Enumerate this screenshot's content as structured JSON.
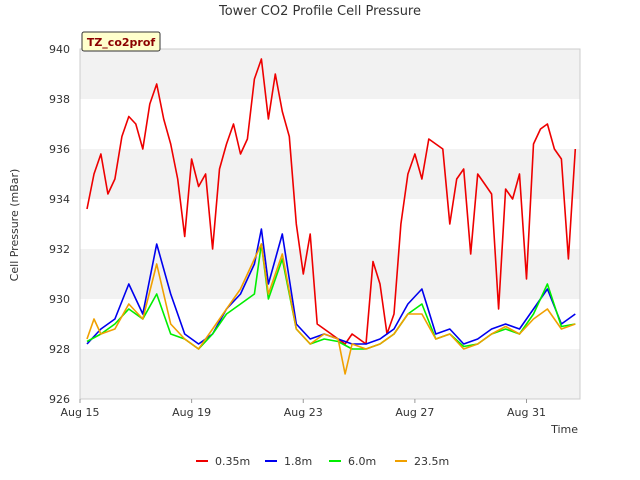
{
  "chart_data": {
    "type": "line",
    "title": "Tower CO2 Profile Cell Pressure",
    "xlabel": "Time",
    "ylabel": "Cell Pressure (mBar)",
    "site_tag": "TZ_co2prof",
    "xlim": [
      "2023-08-15",
      "2023-09-01 22:00"
    ],
    "ylim": [
      926,
      940
    ],
    "xticks": [
      {
        "label": "Aug 15",
        "date": "2023-08-15"
      },
      {
        "label": "Aug 19",
        "date": "2023-08-19"
      },
      {
        "label": "Aug 23",
        "date": "2023-08-23"
      },
      {
        "label": "Aug 27",
        "date": "2023-08-27"
      },
      {
        "label": "Aug 31",
        "date": "2023-08-31"
      }
    ],
    "yticks": [
      926,
      928,
      930,
      932,
      934,
      936,
      938,
      940
    ],
    "grid": "horizontal bands",
    "legend_position": "bottom",
    "series": [
      {
        "name": "0.35m",
        "color": "#ee0000",
        "points": [
          [
            "2023-08-15 06:00",
            933.6
          ],
          [
            "2023-08-15 12:00",
            935.0
          ],
          [
            "2023-08-15 18:00",
            935.8
          ],
          [
            "2023-08-16 00:00",
            934.2
          ],
          [
            "2023-08-16 06:00",
            934.8
          ],
          [
            "2023-08-16 12:00",
            936.5
          ],
          [
            "2023-08-16 18:00",
            937.3
          ],
          [
            "2023-08-17 00:00",
            937.0
          ],
          [
            "2023-08-17 06:00",
            936.0
          ],
          [
            "2023-08-17 12:00",
            937.8
          ],
          [
            "2023-08-17 18:00",
            938.6
          ],
          [
            "2023-08-18 00:00",
            937.2
          ],
          [
            "2023-08-18 06:00",
            936.2
          ],
          [
            "2023-08-18 12:00",
            934.8
          ],
          [
            "2023-08-18 18:00",
            932.5
          ],
          [
            "2023-08-19 00:00",
            935.6
          ],
          [
            "2023-08-19 06:00",
            934.5
          ],
          [
            "2023-08-19 12:00",
            935.0
          ],
          [
            "2023-08-19 18:00",
            932.0
          ],
          [
            "2023-08-20 00:00",
            935.2
          ],
          [
            "2023-08-20 06:00",
            936.2
          ],
          [
            "2023-08-20 12:00",
            937.0
          ],
          [
            "2023-08-20 18:00",
            935.8
          ],
          [
            "2023-08-21 00:00",
            936.4
          ],
          [
            "2023-08-21 06:00",
            938.8
          ],
          [
            "2023-08-21 12:00",
            939.6
          ],
          [
            "2023-08-21 18:00",
            937.2
          ],
          [
            "2023-08-22 00:00",
            939.0
          ],
          [
            "2023-08-22 06:00",
            937.5
          ],
          [
            "2023-08-22 12:00",
            936.5
          ],
          [
            "2023-08-22 18:00",
            933.0
          ],
          [
            "2023-08-23 00:00",
            931.0
          ],
          [
            "2023-08-23 06:00",
            932.6
          ],
          [
            "2023-08-23 12:00",
            929.0
          ],
          [
            "2023-08-23 18:00",
            928.8
          ],
          [
            "2023-08-24 00:00",
            928.6
          ],
          [
            "2023-08-24 06:00",
            928.4
          ],
          [
            "2023-08-24 12:00",
            928.2
          ],
          [
            "2023-08-24 18:00",
            928.6
          ],
          [
            "2023-08-25 00:00",
            928.4
          ],
          [
            "2023-08-25 06:00",
            928.2
          ],
          [
            "2023-08-25 12:00",
            931.5
          ],
          [
            "2023-08-25 18:00",
            930.6
          ],
          [
            "2023-08-26 00:00",
            928.6
          ],
          [
            "2023-08-26 06:00",
            929.4
          ],
          [
            "2023-08-26 12:00",
            933.0
          ],
          [
            "2023-08-26 18:00",
            935.0
          ],
          [
            "2023-08-27 00:00",
            935.8
          ],
          [
            "2023-08-27 06:00",
            934.8
          ],
          [
            "2023-08-27 12:00",
            936.4
          ],
          [
            "2023-08-27 18:00",
            936.2
          ],
          [
            "2023-08-28 00:00",
            936.0
          ],
          [
            "2023-08-28 06:00",
            933.0
          ],
          [
            "2023-08-28 12:00",
            934.8
          ],
          [
            "2023-08-28 18:00",
            935.2
          ],
          [
            "2023-08-29 00:00",
            931.8
          ],
          [
            "2023-08-29 06:00",
            935.0
          ],
          [
            "2023-08-29 12:00",
            934.6
          ],
          [
            "2023-08-29 18:00",
            934.2
          ],
          [
            "2023-08-30 00:00",
            929.6
          ],
          [
            "2023-08-30 06:00",
            934.4
          ],
          [
            "2023-08-30 12:00",
            934.0
          ],
          [
            "2023-08-30 18:00",
            935.0
          ],
          [
            "2023-08-31 00:00",
            930.8
          ],
          [
            "2023-08-31 06:00",
            936.2
          ],
          [
            "2023-08-31 12:00",
            936.8
          ],
          [
            "2023-08-31 18:00",
            937.0
          ],
          [
            "2023-09-01 00:00",
            936.0
          ],
          [
            "2023-09-01 06:00",
            935.6
          ],
          [
            "2023-09-01 12:00",
            931.6
          ],
          [
            "2023-09-01 18:00",
            936.0
          ]
        ]
      },
      {
        "name": "1.8m",
        "color": "#0000ee",
        "points": [
          [
            "2023-08-15 06:00",
            928.2
          ],
          [
            "2023-08-15 18:00",
            928.8
          ],
          [
            "2023-08-16 06:00",
            929.2
          ],
          [
            "2023-08-16 18:00",
            930.6
          ],
          [
            "2023-08-17 06:00",
            929.4
          ],
          [
            "2023-08-17 18:00",
            932.2
          ],
          [
            "2023-08-18 06:00",
            930.2
          ],
          [
            "2023-08-18 18:00",
            928.6
          ],
          [
            "2023-08-19 06:00",
            928.2
          ],
          [
            "2023-08-19 18:00",
            928.6
          ],
          [
            "2023-08-20 06:00",
            929.6
          ],
          [
            "2023-08-20 18:00",
            930.2
          ],
          [
            "2023-08-21 06:00",
            931.4
          ],
          [
            "2023-08-21 12:00",
            932.8
          ],
          [
            "2023-08-21 18:00",
            930.6
          ],
          [
            "2023-08-22 06:00",
            932.6
          ],
          [
            "2023-08-22 18:00",
            929.0
          ],
          [
            "2023-08-23 06:00",
            928.4
          ],
          [
            "2023-08-23 18:00",
            928.6
          ],
          [
            "2023-08-24 06:00",
            928.4
          ],
          [
            "2023-08-24 18:00",
            928.2
          ],
          [
            "2023-08-25 06:00",
            928.2
          ],
          [
            "2023-08-25 18:00",
            928.4
          ],
          [
            "2023-08-26 06:00",
            928.8
          ],
          [
            "2023-08-26 18:00",
            929.8
          ],
          [
            "2023-08-27 06:00",
            930.4
          ],
          [
            "2023-08-27 18:00",
            928.6
          ],
          [
            "2023-08-28 06:00",
            928.8
          ],
          [
            "2023-08-28 18:00",
            928.2
          ],
          [
            "2023-08-29 06:00",
            928.4
          ],
          [
            "2023-08-29 18:00",
            928.8
          ],
          [
            "2023-08-30 06:00",
            929.0
          ],
          [
            "2023-08-30 18:00",
            928.8
          ],
          [
            "2023-08-31 06:00",
            929.6
          ],
          [
            "2023-08-31 18:00",
            930.4
          ],
          [
            "2023-09-01 06:00",
            929.0
          ],
          [
            "2023-09-01 18:00",
            929.4
          ]
        ]
      },
      {
        "name": "6.0m",
        "color": "#00ee00",
        "points": [
          [
            "2023-08-15 06:00",
            928.3
          ],
          [
            "2023-08-15 18:00",
            928.6
          ],
          [
            "2023-08-16 06:00",
            929.0
          ],
          [
            "2023-08-16 18:00",
            929.6
          ],
          [
            "2023-08-17 06:00",
            929.2
          ],
          [
            "2023-08-17 18:00",
            930.2
          ],
          [
            "2023-08-18 06:00",
            928.6
          ],
          [
            "2023-08-18 18:00",
            928.4
          ],
          [
            "2023-08-19 06:00",
            928.0
          ],
          [
            "2023-08-19 18:00",
            928.6
          ],
          [
            "2023-08-20 06:00",
            929.4
          ],
          [
            "2023-08-20 18:00",
            929.8
          ],
          [
            "2023-08-21 06:00",
            930.2
          ],
          [
            "2023-08-21 12:00",
            932.2
          ],
          [
            "2023-08-21 18:00",
            930.0
          ],
          [
            "2023-08-22 06:00",
            931.6
          ],
          [
            "2023-08-22 18:00",
            928.8
          ],
          [
            "2023-08-23 06:00",
            928.2
          ],
          [
            "2023-08-23 18:00",
            928.4
          ],
          [
            "2023-08-24 06:00",
            928.3
          ],
          [
            "2023-08-24 18:00",
            928.0
          ],
          [
            "2023-08-25 06:00",
            928.0
          ],
          [
            "2023-08-25 18:00",
            928.2
          ],
          [
            "2023-08-26 06:00",
            928.6
          ],
          [
            "2023-08-26 18:00",
            929.4
          ],
          [
            "2023-08-27 06:00",
            929.8
          ],
          [
            "2023-08-27 18:00",
            928.4
          ],
          [
            "2023-08-28 06:00",
            928.6
          ],
          [
            "2023-08-28 18:00",
            928.1
          ],
          [
            "2023-08-29 06:00",
            928.2
          ],
          [
            "2023-08-29 18:00",
            928.6
          ],
          [
            "2023-08-30 06:00",
            928.8
          ],
          [
            "2023-08-30 18:00",
            928.6
          ],
          [
            "2023-08-31 06:00",
            929.4
          ],
          [
            "2023-08-31 18:00",
            930.6
          ],
          [
            "2023-09-01 06:00",
            928.9
          ],
          [
            "2023-09-01 18:00",
            929.0
          ]
        ]
      },
      {
        "name": "23.5m",
        "color": "#f0a000",
        "points": [
          [
            "2023-08-15 06:00",
            928.4
          ],
          [
            "2023-08-15 12:00",
            929.2
          ],
          [
            "2023-08-15 18:00",
            928.6
          ],
          [
            "2023-08-16 06:00",
            928.8
          ],
          [
            "2023-08-16 18:00",
            929.8
          ],
          [
            "2023-08-17 06:00",
            929.2
          ],
          [
            "2023-08-17 18:00",
            931.4
          ],
          [
            "2023-08-18 06:00",
            929.0
          ],
          [
            "2023-08-18 18:00",
            928.4
          ],
          [
            "2023-08-19 06:00",
            928.0
          ],
          [
            "2023-08-19 18:00",
            928.8
          ],
          [
            "2023-08-20 06:00",
            929.6
          ],
          [
            "2023-08-20 18:00",
            930.4
          ],
          [
            "2023-08-21 06:00",
            931.6
          ],
          [
            "2023-08-21 12:00",
            932.2
          ],
          [
            "2023-08-21 18:00",
            930.2
          ],
          [
            "2023-08-22 06:00",
            931.8
          ],
          [
            "2023-08-22 18:00",
            928.8
          ],
          [
            "2023-08-23 06:00",
            928.2
          ],
          [
            "2023-08-23 18:00",
            928.6
          ],
          [
            "2023-08-24 06:00",
            928.4
          ],
          [
            "2023-08-24 12:00",
            927.0
          ],
          [
            "2023-08-24 18:00",
            928.2
          ],
          [
            "2023-08-25 06:00",
            928.0
          ],
          [
            "2023-08-25 18:00",
            928.2
          ],
          [
            "2023-08-26 06:00",
            928.6
          ],
          [
            "2023-08-26 18:00",
            929.4
          ],
          [
            "2023-08-27 06:00",
            929.4
          ],
          [
            "2023-08-27 18:00",
            928.4
          ],
          [
            "2023-08-28 06:00",
            928.6
          ],
          [
            "2023-08-28 18:00",
            928.0
          ],
          [
            "2023-08-29 06:00",
            928.2
          ],
          [
            "2023-08-29 18:00",
            928.6
          ],
          [
            "2023-08-30 06:00",
            928.9
          ],
          [
            "2023-08-30 18:00",
            928.6
          ],
          [
            "2023-08-31 06:00",
            929.2
          ],
          [
            "2023-08-31 18:00",
            929.6
          ],
          [
            "2023-09-01 06:00",
            928.8
          ],
          [
            "2023-09-01 18:00",
            929.0
          ]
        ]
      }
    ]
  }
}
